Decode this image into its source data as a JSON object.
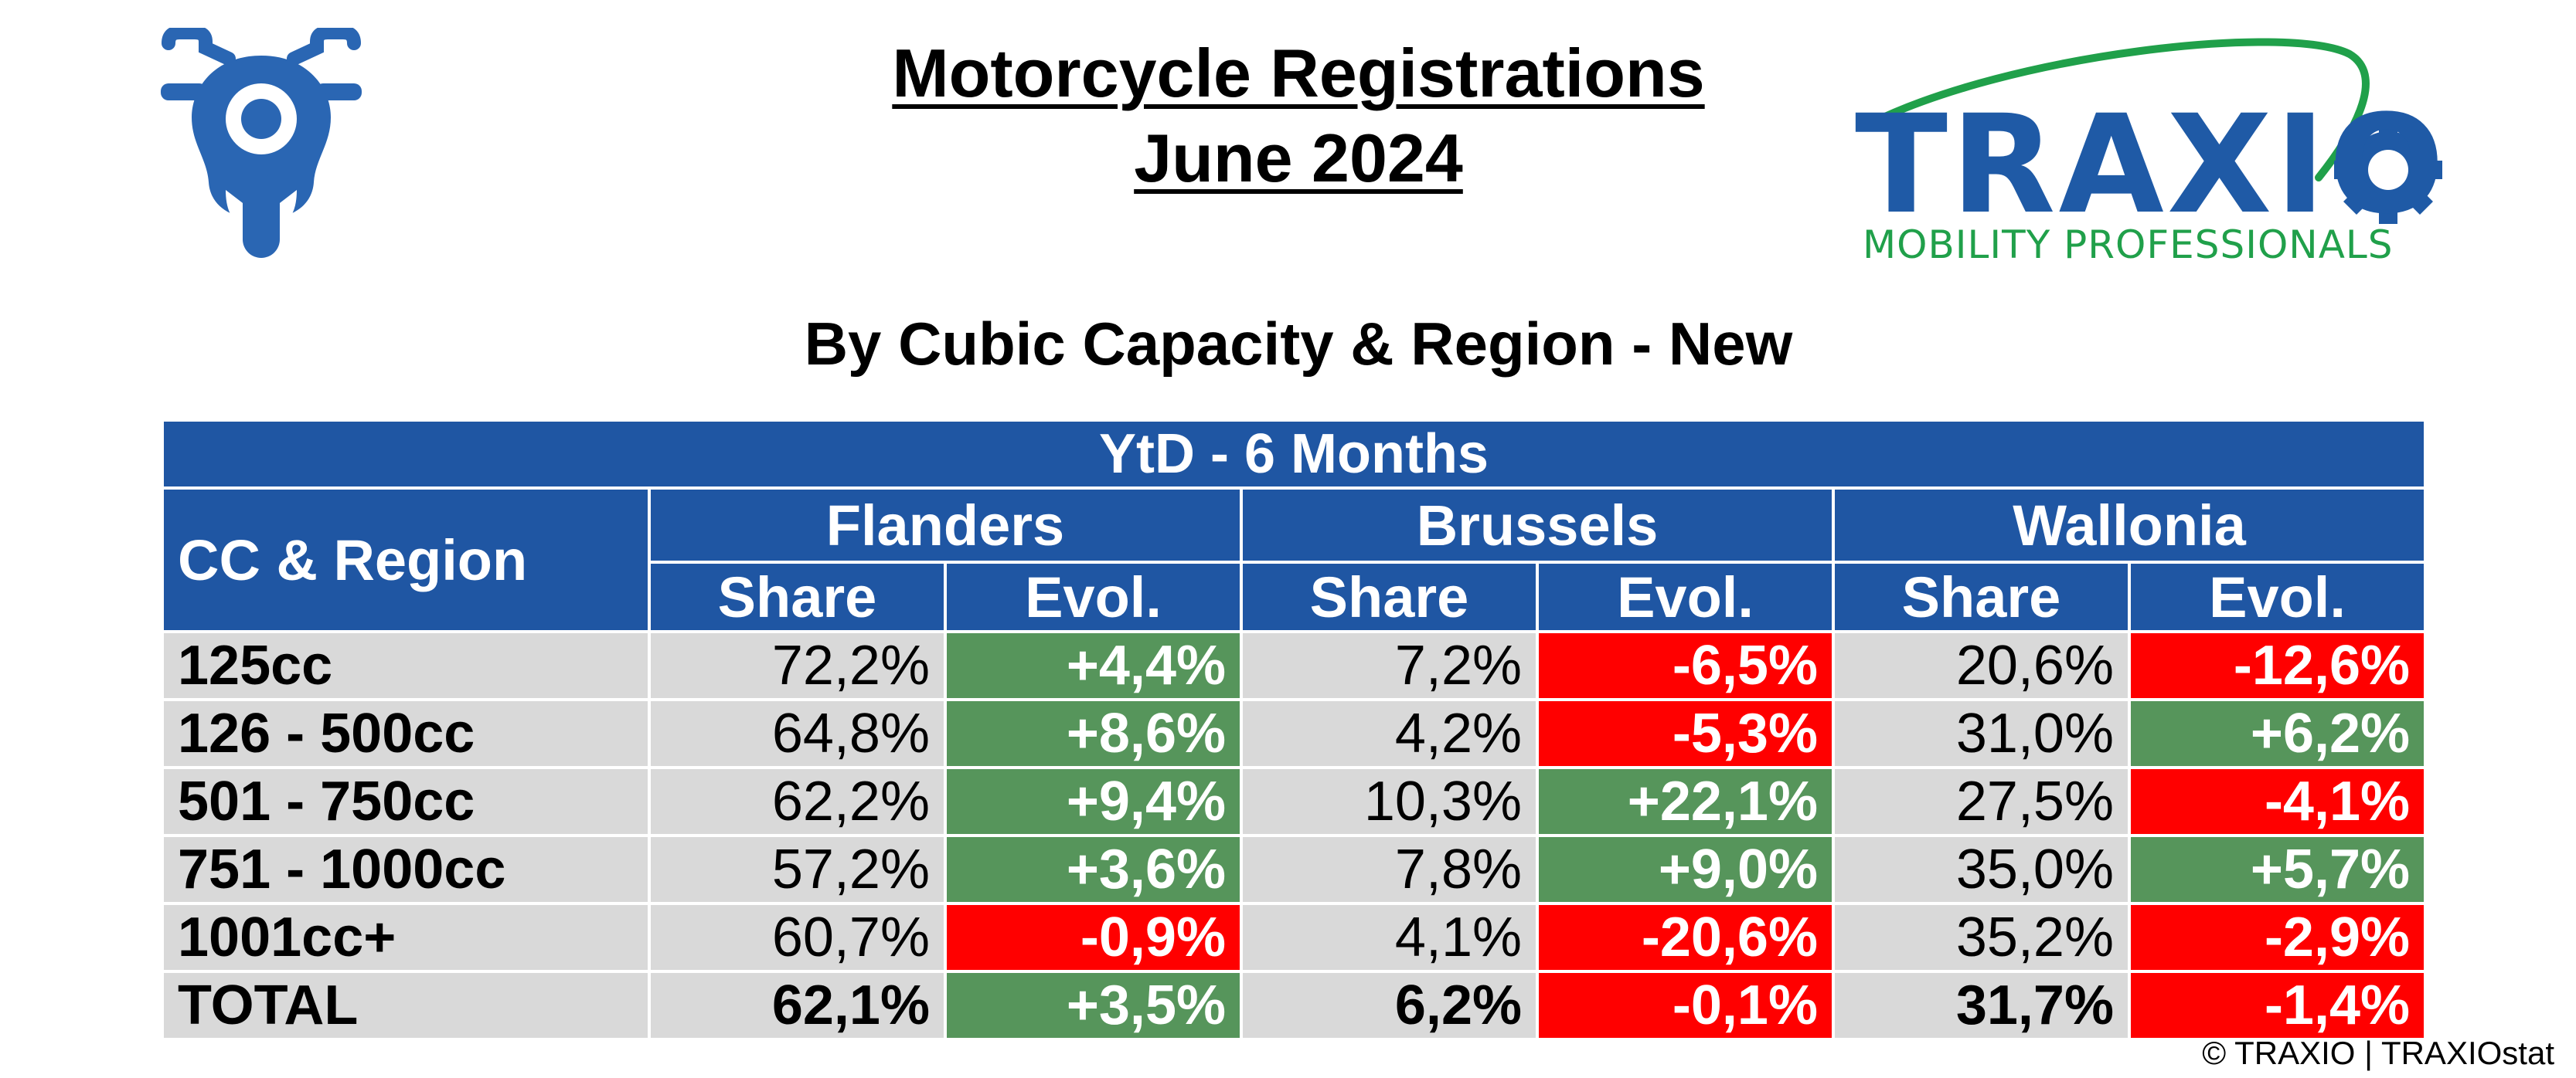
{
  "header": {
    "title_line1": "Motorcycle Registrations",
    "title_line2": "June 2024",
    "subtitle": "By Cubic Capacity & Region - New"
  },
  "logo": {
    "name": "TRAXIO",
    "tagline": "MOBILITY PROFESSIONALS",
    "brand_color": "#1f5aa6",
    "accent_color": "#20a04a"
  },
  "icon": {
    "name": "motorcycle-icon",
    "color": "#2a66b3"
  },
  "table": {
    "period": "YtD - 6 Months",
    "first_col_header": "CC & Region",
    "regions": [
      "Flanders",
      "Brussels",
      "Wallonia"
    ],
    "share_label": "Share",
    "evol_label": "Evol.",
    "rows": [
      {
        "label": "125cc",
        "flanders": {
          "share": "72,2%",
          "evol": "+4,4%"
        },
        "brussels": {
          "share": "7,2%",
          "evol": "-6,5%"
        },
        "wallonia": {
          "share": "20,6%",
          "evol": "-12,6%"
        }
      },
      {
        "label": "126 - 500cc",
        "flanders": {
          "share": "64,8%",
          "evol": "+8,6%"
        },
        "brussels": {
          "share": "4,2%",
          "evol": "-5,3%"
        },
        "wallonia": {
          "share": "31,0%",
          "evol": "+6,2%"
        }
      },
      {
        "label": "501 - 750cc",
        "flanders": {
          "share": "62,2%",
          "evol": "+9,4%"
        },
        "brussels": {
          "share": "10,3%",
          "evol": "+22,1%"
        },
        "wallonia": {
          "share": "27,5%",
          "evol": "-4,1%"
        }
      },
      {
        "label": "751 - 1000cc",
        "flanders": {
          "share": "57,2%",
          "evol": "+3,6%"
        },
        "brussels": {
          "share": "7,8%",
          "evol": "+9,0%"
        },
        "wallonia": {
          "share": "35,0%",
          "evol": "+5,7%"
        }
      },
      {
        "label": "1001cc+",
        "flanders": {
          "share": "60,7%",
          "evol": "-0,9%"
        },
        "brussels": {
          "share": "4,1%",
          "evol": "-20,6%"
        },
        "wallonia": {
          "share": "35,2%",
          "evol": "-2,9%"
        }
      },
      {
        "label": "TOTAL",
        "flanders": {
          "share": "62,1%",
          "evol": "+3,5%"
        },
        "brussels": {
          "share": "6,2%",
          "evol": "-0,1%"
        },
        "wallonia": {
          "share": "31,7%",
          "evol": "-1,4%"
        }
      }
    ],
    "colors": {
      "header_bg": "#1f56a3",
      "row_bg": "#d9d9d9",
      "positive": "#56955b",
      "negative": "#ff0000"
    }
  },
  "footer": {
    "copyright": "© TRAXIO | TRAXIOstat"
  }
}
